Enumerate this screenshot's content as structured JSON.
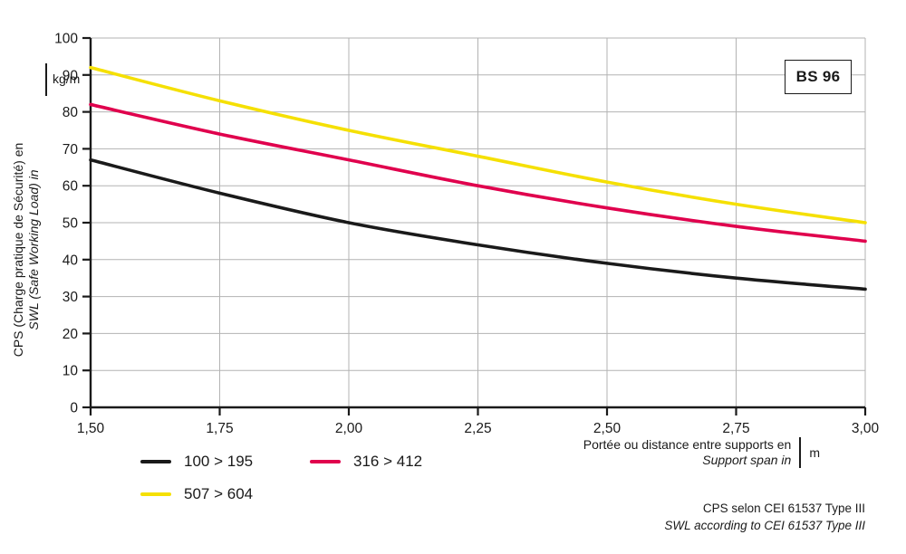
{
  "labels": {
    "y_axis_line1": "CPS (Charge pratique de Sécurité) en",
    "y_axis_line2": "SWL (Safe Working Load) in",
    "y_unit": "kg/m",
    "x_axis_line1": "Portée ou distance entre supports en",
    "x_axis_line2": "Support span in",
    "x_unit": "m",
    "badge": "BS 96",
    "footnote_line1": "CPS selon CEI 61537 Type III",
    "footnote_line2": "SWL according to CEI 61537 Type III"
  },
  "colors": {
    "axis": "#1a1a1a",
    "grid": "#b3b3b3",
    "text": "#1a1a1a",
    "background": "#ffffff"
  },
  "chart_data": {
    "type": "line",
    "title": "",
    "xlabel": "Portée ou distance entre supports en / Support span in (m)",
    "ylabel": "CPS (Charge pratique de Sécurité) en / SWL (Safe Working Load) in (kg/m)",
    "xlim": [
      1.5,
      3.0
    ],
    "ylim": [
      0,
      100
    ],
    "grid": true,
    "legend_position": "bottom-left",
    "x": [
      1.5,
      1.75,
      2.0,
      2.25,
      2.5,
      2.75,
      3.0
    ],
    "x_tick_labels": [
      "1,50",
      "1,75",
      "2,00",
      "2,25",
      "2,50",
      "2,75",
      "3,00"
    ],
    "y_ticks": [
      0,
      10,
      20,
      30,
      40,
      50,
      60,
      70,
      80,
      90,
      100
    ],
    "series": [
      {
        "name": "100 > 195",
        "color": "#1a1a1a",
        "values": [
          67,
          58,
          50,
          44,
          39,
          35,
          32
        ]
      },
      {
        "name": "316 > 412",
        "color": "#e0004d",
        "values": [
          82,
          74,
          67,
          60,
          54,
          49,
          45
        ]
      },
      {
        "name": "507 > 604",
        "color": "#f5e003",
        "values": [
          92,
          83,
          75,
          68,
          61,
          55,
          50
        ]
      }
    ],
    "annotations": [
      "BS 96"
    ]
  }
}
